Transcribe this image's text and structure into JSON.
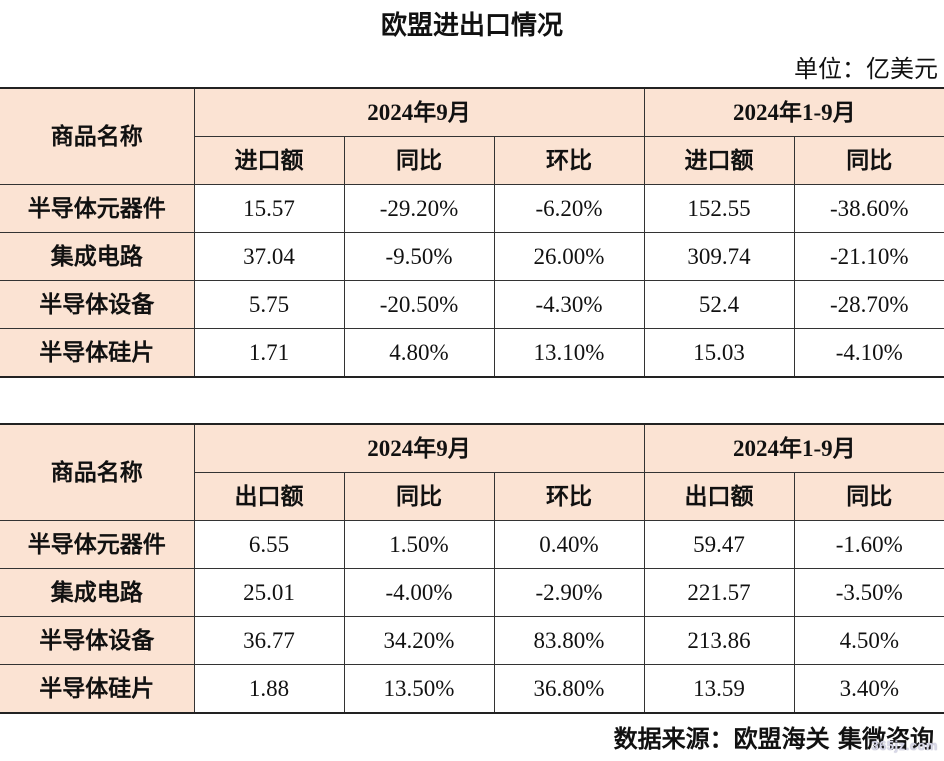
{
  "title": "欧盟进出口情况",
  "unit_label": "单位：亿美元",
  "source_label": "数据来源：欧盟海关 集微咨询",
  "watermark": "365jz.com",
  "colors": {
    "header_background": "#fbe3d3",
    "border": "#333333"
  },
  "import_table": {
    "name_header": "商品名称",
    "group1_header": "2024年9月",
    "group2_header": "2024年1-9月",
    "sub_headers": [
      "进口额",
      "同比",
      "环比",
      "进口额",
      "同比"
    ],
    "rows": [
      {
        "name": "半导体元器件",
        "cells": [
          "15.57",
          "-29.20%",
          "-6.20%",
          "152.55",
          "-38.60%"
        ]
      },
      {
        "name": "集成电路",
        "cells": [
          "37.04",
          "-9.50%",
          "26.00%",
          "309.74",
          "-21.10%"
        ]
      },
      {
        "name": "半导体设备",
        "cells": [
          "5.75",
          "-20.50%",
          "-4.30%",
          "52.4",
          "-28.70%"
        ]
      },
      {
        "name": "半导体硅片",
        "cells": [
          "1.71",
          "4.80%",
          "13.10%",
          "15.03",
          "-4.10%"
        ]
      }
    ]
  },
  "export_table": {
    "name_header": "商品名称",
    "group1_header": "2024年9月",
    "group2_header": "2024年1-9月",
    "sub_headers": [
      "出口额",
      "同比",
      "环比",
      "出口额",
      "同比"
    ],
    "rows": [
      {
        "name": "半导体元器件",
        "cells": [
          "6.55",
          "1.50%",
          "0.40%",
          "59.47",
          "-1.60%"
        ]
      },
      {
        "name": "集成电路",
        "cells": [
          "25.01",
          "-4.00%",
          "-2.90%",
          "221.57",
          "-3.50%"
        ]
      },
      {
        "name": "半导体设备",
        "cells": [
          "36.77",
          "34.20%",
          "83.80%",
          "213.86",
          "4.50%"
        ]
      },
      {
        "name": "半导体硅片",
        "cells": [
          "1.88",
          "13.50%",
          "36.80%",
          "13.59",
          "3.40%"
        ]
      }
    ]
  }
}
